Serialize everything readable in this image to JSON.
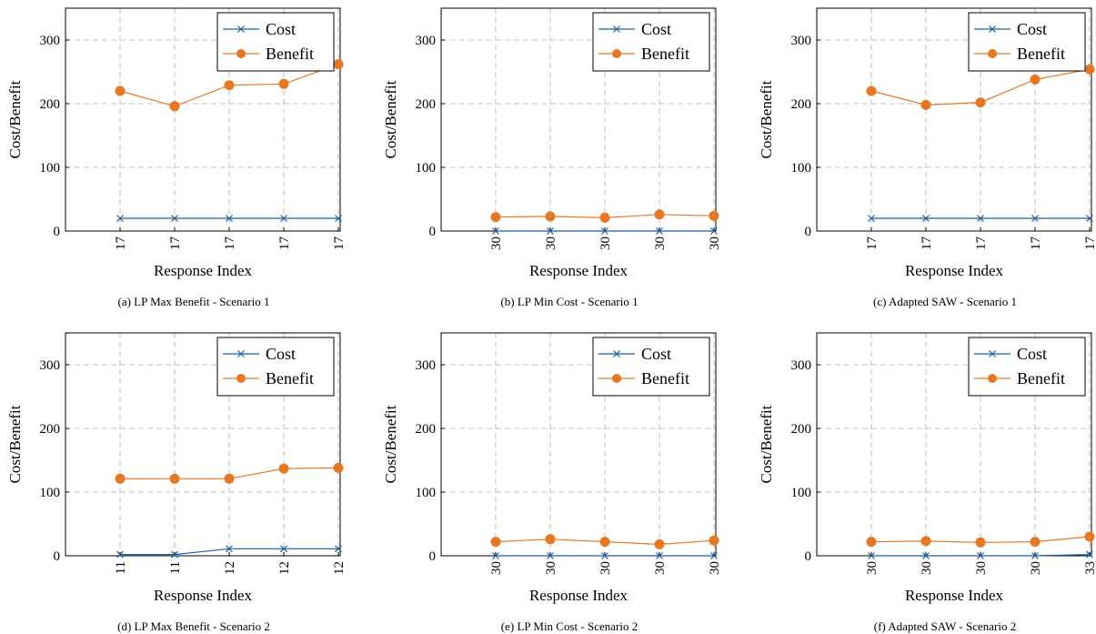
{
  "colors": {
    "cost": "#1f5fa0",
    "benefit": "#e87722",
    "grid": "#b0b0b0",
    "axis": "#000000"
  },
  "chart_data": [
    {
      "type": "line",
      "caption": "(a) LP Max Benefit - Scenario 1",
      "xlabel": "Response Index",
      "ylabel": "Cost/Benefit",
      "ylim": [
        0,
        350
      ],
      "yticks": [
        0,
        100,
        200,
        300
      ],
      "categories": [
        "17",
        "17",
        "17",
        "17",
        "17"
      ],
      "grid": true,
      "legend_position": "top-right",
      "series": [
        {
          "name": "Cost",
          "marker": "x",
          "values": [
            20,
            20,
            20,
            20,
            20
          ]
        },
        {
          "name": "Benefit",
          "marker": "circle",
          "values": [
            220,
            196,
            229,
            231,
            262
          ]
        }
      ]
    },
    {
      "type": "line",
      "caption": "(b) LP Min Cost - Scenario 1",
      "xlabel": "Response Index",
      "ylabel": "Cost/Benefit",
      "ylim": [
        0,
        350
      ],
      "yticks": [
        0,
        100,
        200,
        300
      ],
      "categories": [
        "30",
        "30",
        "30",
        "30",
        "30"
      ],
      "grid": true,
      "legend_position": "top-right",
      "series": [
        {
          "name": "Cost",
          "marker": "x",
          "values": [
            0,
            0,
            0,
            0,
            0
          ]
        },
        {
          "name": "Benefit",
          "marker": "circle",
          "values": [
            22,
            23,
            21,
            26,
            24
          ]
        }
      ]
    },
    {
      "type": "line",
      "caption": "(c) Adapted SAW - Scenario 1",
      "xlabel": "Response Index",
      "ylabel": "Cost/Benefit",
      "ylim": [
        0,
        350
      ],
      "yticks": [
        0,
        100,
        200,
        300
      ],
      "categories": [
        "17",
        "17",
        "17",
        "17",
        "17"
      ],
      "grid": true,
      "legend_position": "top-right",
      "series": [
        {
          "name": "Cost",
          "marker": "x",
          "values": [
            20,
            20,
            20,
            20,
            20
          ]
        },
        {
          "name": "Benefit",
          "marker": "circle",
          "values": [
            220,
            198,
            202,
            238,
            254
          ]
        }
      ]
    },
    {
      "type": "line",
      "caption": "(d) LP Max Benefit - Scenario 2",
      "xlabel": "Response Index",
      "ylabel": "Cost/Benefit",
      "ylim": [
        0,
        350
      ],
      "yticks": [
        0,
        100,
        200,
        300
      ],
      "categories": [
        "11",
        "11",
        "12",
        "12",
        "12"
      ],
      "grid": true,
      "legend_position": "top-right",
      "series": [
        {
          "name": "Cost",
          "marker": "x",
          "values": [
            2,
            2,
            11,
            11,
            11
          ]
        },
        {
          "name": "Benefit",
          "marker": "circle",
          "values": [
            121,
            121,
            121,
            137,
            138
          ]
        }
      ]
    },
    {
      "type": "line",
      "caption": "(e) LP Min Cost - Scenario 2",
      "xlabel": "Response Index",
      "ylabel": "Cost/Benefit",
      "ylim": [
        0,
        350
      ],
      "yticks": [
        0,
        100,
        200,
        300
      ],
      "categories": [
        "30",
        "30",
        "30",
        "30",
        "30"
      ],
      "grid": true,
      "legend_position": "top-right",
      "series": [
        {
          "name": "Cost",
          "marker": "x",
          "values": [
            0,
            0,
            0,
            0,
            0
          ]
        },
        {
          "name": "Benefit",
          "marker": "circle",
          "values": [
            22,
            26,
            22,
            18,
            24
          ]
        }
      ]
    },
    {
      "type": "line",
      "caption": "(f) Adapted SAW - Scenario 2",
      "xlabel": "Response Index",
      "ylabel": "Cost/Benefit",
      "ylim": [
        0,
        350
      ],
      "yticks": [
        0,
        100,
        200,
        300
      ],
      "categories": [
        "30",
        "30",
        "30",
        "30",
        "33"
      ],
      "grid": true,
      "legend_position": "top-right",
      "series": [
        {
          "name": "Cost",
          "marker": "x",
          "values": [
            0,
            0,
            0,
            0,
            2
          ]
        },
        {
          "name": "Benefit",
          "marker": "circle",
          "values": [
            22,
            23,
            21,
            22,
            30
          ]
        }
      ]
    }
  ]
}
